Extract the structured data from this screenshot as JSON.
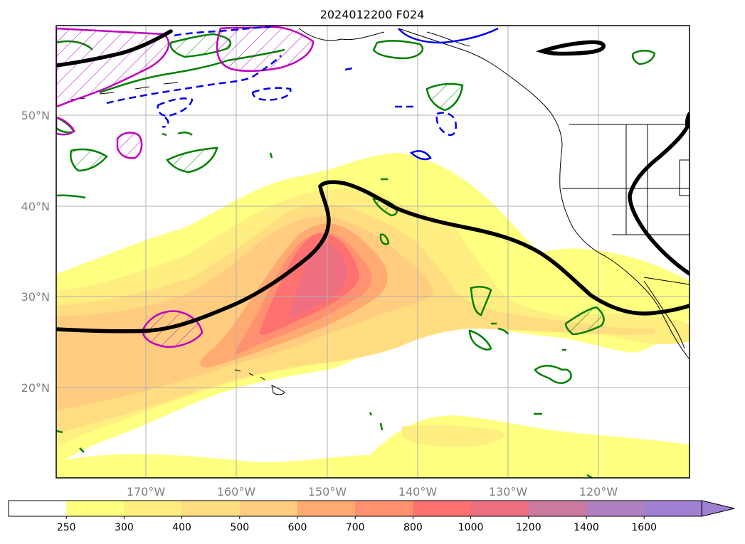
{
  "title": "2024012200 F024",
  "latitude_labels": [
    "50°N",
    "40°N",
    "30°N",
    "20°N"
  ],
  "longitude_labels": [
    "170°W",
    "160°W",
    "150°W",
    "140°W",
    "130°W",
    "120°W"
  ],
  "colorbar": {
    "labels": [
      "250",
      "300",
      "400",
      "500",
      "600",
      "700",
      "800",
      "1000",
      "1200",
      "1400",
      "1600"
    ],
    "colors": [
      "#ffffff",
      "#ffff80",
      "#ffee80",
      "#ffdd80",
      "#ffcc80",
      "#ffaa70",
      "#ff9070",
      "#ff7070",
      "#ee7080",
      "#cc7aa0",
      "#b080c0",
      "#a080d0"
    ],
    "extend": "max"
  },
  "colors": {
    "jet_line": "#000000",
    "green_contour": "#008000",
    "magenta_contour": "#c000c0",
    "blue_contour": "#0000ee",
    "gridline": "#b0b0b0",
    "coastline": "#000000"
  }
}
